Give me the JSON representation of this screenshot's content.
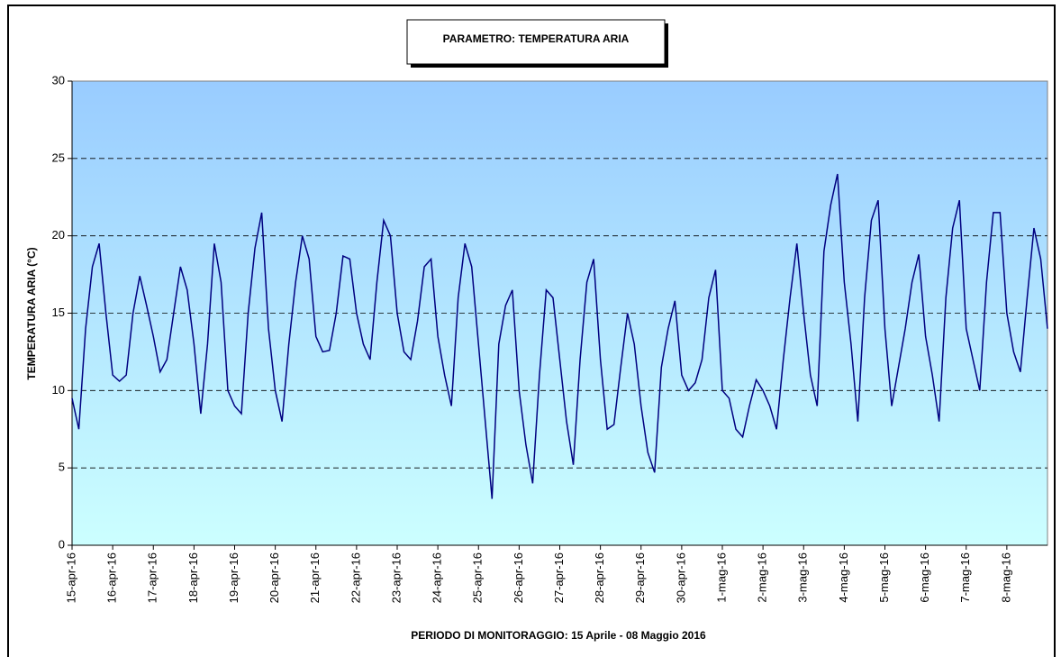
{
  "chart_data": {
    "type": "line",
    "title": "PARAMETRO: TEMPERATURA ARIA",
    "y_label": "TEMPERATURA ARIA (°C)",
    "x_label": "PERIODO DI MONITORAGGIO: 15 Aprile - 08 Maggio 2016",
    "categories": [
      "15-apr-16",
      null,
      null,
      null,
      null,
      null,
      "16-apr-16",
      null,
      null,
      null,
      null,
      null,
      "17-apr-16",
      null,
      null,
      null,
      null,
      null,
      "18-apr-16",
      null,
      null,
      null,
      null,
      null,
      "19-apr-16",
      null,
      null,
      null,
      null,
      null,
      "20-apr-16",
      null,
      null,
      null,
      null,
      null,
      "21-apr-16",
      null,
      null,
      null,
      null,
      null,
      "22-apr-16",
      null,
      null,
      null,
      null,
      null,
      "23-apr-16",
      null,
      null,
      null,
      null,
      null,
      "24-apr-16",
      null,
      null,
      null,
      null,
      null,
      "25-apr-16",
      null,
      null,
      null,
      null,
      null,
      "26-apr-16",
      null,
      null,
      null,
      null,
      null,
      "27-apr-16",
      null,
      null,
      null,
      null,
      null,
      "28-apr-16",
      null,
      null,
      null,
      null,
      null,
      "29-apr-16",
      null,
      null,
      null,
      null,
      null,
      "30-apr-16",
      null,
      null,
      null,
      null,
      null,
      "1-mag-16",
      null,
      null,
      null,
      null,
      null,
      "2-mag-16",
      null,
      null,
      null,
      null,
      null,
      "3-mag-16",
      null,
      null,
      null,
      null,
      null,
      "4-mag-16",
      null,
      null,
      null,
      null,
      null,
      "5-mag-16",
      null,
      null,
      null,
      null,
      null,
      "6-mag-16",
      null,
      null,
      null,
      null,
      null,
      "7-mag-16",
      null,
      null,
      null,
      null,
      null,
      "8-mag-16",
      null,
      null,
      null,
      null,
      null,
      null
    ],
    "series": [
      {
        "name": "Temperatura aria",
        "color": "#000080",
        "values": [
          9.5,
          7.5,
          14,
          18,
          19.5,
          15,
          11,
          10.6,
          11,
          15,
          17.4,
          15.5,
          13.5,
          11.2,
          12,
          15,
          18,
          16.5,
          13,
          8.5,
          13,
          19.5,
          17,
          10,
          9,
          8.5,
          15,
          19.2,
          21.5,
          14,
          10,
          8,
          13,
          17,
          20,
          18.5,
          13.5,
          12.5,
          12.6,
          15,
          18.7,
          18.5,
          15,
          13,
          12,
          17,
          21,
          20,
          15,
          12.5,
          12,
          14.5,
          18,
          18.5,
          13.5,
          11,
          9,
          16,
          19.5,
          18,
          13,
          8,
          3,
          13,
          15.5,
          16.5,
          10,
          6.5,
          4,
          11,
          16.5,
          16,
          12,
          8,
          5.2,
          12,
          17,
          18.5,
          12,
          7.5,
          7.8,
          11.5,
          15,
          13,
          9,
          6,
          4.7,
          11.5,
          14,
          15.8,
          11,
          10,
          10.5,
          12,
          16,
          17.8,
          10,
          9.5,
          7.5,
          7,
          9,
          10.7,
          10,
          9,
          7.5,
          12,
          16,
          19.5,
          15,
          11,
          9,
          19,
          22,
          24,
          17,
          13,
          8,
          16,
          21,
          22.3,
          14,
          9,
          11.5,
          14,
          17,
          18.8,
          13.5,
          11,
          8,
          16,
          20.5,
          22.3,
          14,
          12,
          10,
          17,
          21.5,
          21.5,
          15,
          12.5,
          11.2,
          16,
          20.5,
          18.5,
          14
        ]
      }
    ],
    "ylim": [
      0,
      30
    ],
    "yticks": [
      0,
      5,
      10,
      15,
      20,
      25,
      30
    ],
    "grid": true
  }
}
